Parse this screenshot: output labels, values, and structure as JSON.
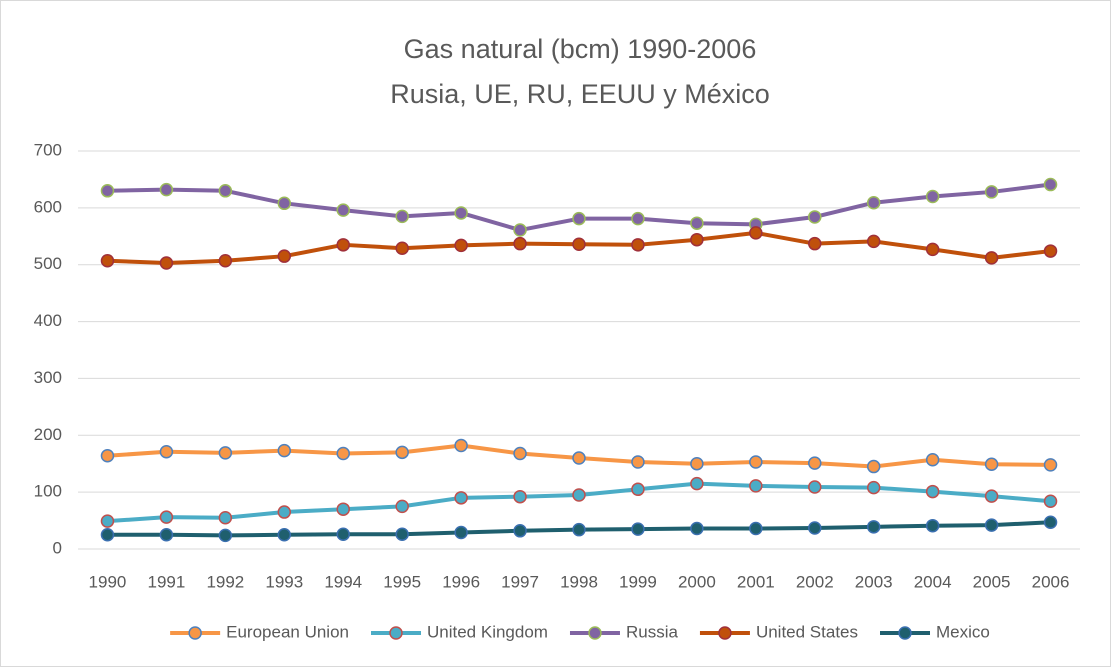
{
  "chart_data": {
    "type": "line",
    "title": "Gas natural (bcm) 1990-2006",
    "subtitle": "Rusia, UE, RU, EEUU y México",
    "categories": [
      "1990",
      "1991",
      "1992",
      "1993",
      "1994",
      "1995",
      "1996",
      "1997",
      "1998",
      "1999",
      "2000",
      "2001",
      "2002",
      "2003",
      "2004",
      "2005",
      "2006"
    ],
    "series": [
      {
        "name": "European Union",
        "color": "#f79646",
        "marker_edge": "#4f81bd",
        "values": [
          164,
          171,
          169,
          173,
          168,
          170,
          182,
          168,
          160,
          153,
          150,
          153,
          151,
          145,
          157,
          149,
          148
        ]
      },
      {
        "name": "United Kingdom",
        "color": "#4bacc6",
        "marker_edge": "#c0504d",
        "values": [
          49,
          56,
          55,
          65,
          70,
          75,
          90,
          92,
          95,
          105,
          115,
          111,
          109,
          108,
          101,
          93,
          84
        ]
      },
      {
        "name": "Russia",
        "color": "#8064a2",
        "marker_edge": "#9bbb59",
        "values": [
          630,
          632,
          630,
          608,
          596,
          585,
          591,
          561,
          581,
          581,
          573,
          571,
          584,
          609,
          620,
          628,
          641
        ]
      },
      {
        "name": "United States",
        "color": "#c0500b",
        "marker_edge": "#a0303a",
        "values": [
          507,
          503,
          507,
          515,
          535,
          529,
          534,
          537,
          536,
          535,
          544,
          556,
          537,
          541,
          527,
          512,
          524
        ]
      },
      {
        "name": "Mexico",
        "color": "#1f5f6e",
        "marker_edge": "#3a6fb0",
        "values": [
          25,
          25,
          24,
          25,
          26,
          26,
          29,
          32,
          34,
          35,
          36,
          36,
          37,
          39,
          41,
          42,
          47
        ]
      }
    ],
    "ylim": [
      0,
      700
    ],
    "yticks": [
      0,
      100,
      200,
      300,
      400,
      500,
      600,
      700
    ],
    "grid": true,
    "legend": "bottom"
  }
}
